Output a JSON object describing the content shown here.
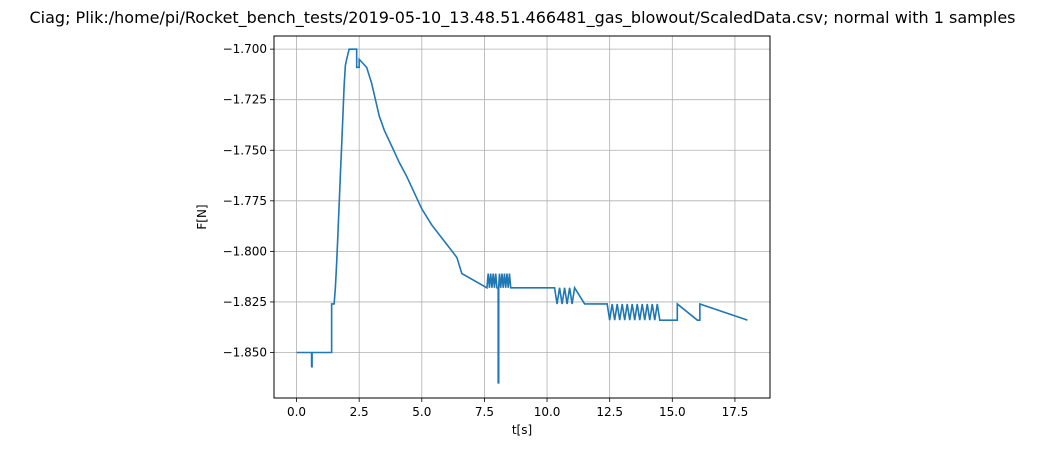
{
  "chart_data": {
    "type": "line",
    "title": "Ciag; Plik:/home/pi/Rocket_bench_tests/2019-05-10_13.48.51.466481_gas_blowout/ScaledData.csv; normal with 1 samples",
    "xlabel": "t[s]",
    "ylabel": "F[N]",
    "xlim": [
      -0.9,
      18.9
    ],
    "ylim": [
      -1.8725,
      -1.6935
    ],
    "xticks": [
      0.0,
      2.5,
      5.0,
      7.5,
      10.0,
      12.5,
      15.0,
      17.5
    ],
    "xtick_labels": [
      "0.0",
      "2.5",
      "5.0",
      "7.5",
      "10.0",
      "12.5",
      "15.0",
      "17.5"
    ],
    "yticks": [
      -1.85,
      -1.825,
      -1.8,
      -1.775,
      -1.75,
      -1.725,
      -1.7
    ],
    "ytick_labels": [
      "−1.850",
      "−1.825",
      "−1.800",
      "−1.775",
      "−1.750",
      "−1.725",
      "−1.700"
    ],
    "grid": true,
    "series": [
      {
        "color": "#1f77b4",
        "x": [
          0.0,
          0.6,
          0.6,
          0.62,
          0.62,
          1.4,
          1.4,
          1.5,
          1.5,
          1.55,
          1.6,
          1.65,
          1.7,
          1.75,
          1.8,
          1.85,
          1.9,
          1.95,
          2.0,
          2.1,
          2.1,
          2.4,
          2.4,
          2.5,
          2.5,
          2.8,
          2.8,
          3.0,
          3.0,
          3.15,
          3.15,
          3.3,
          3.3,
          3.5,
          3.5,
          3.8,
          3.8,
          4.1,
          4.1,
          4.4,
          4.4,
          5.0,
          5.0,
          5.4,
          5.4,
          5.9,
          5.9,
          6.4,
          6.4,
          6.6,
          6.6,
          7.6,
          7.65,
          7.7,
          7.75,
          7.8,
          7.85,
          7.9,
          7.95,
          8.0,
          8.05,
          8.05,
          8.07,
          8.07,
          8.1,
          8.15,
          8.2,
          8.25,
          8.3,
          8.35,
          8.4,
          8.45,
          8.5,
          8.55,
          8.6,
          9.0,
          9.5,
          10.0,
          10.3,
          10.4,
          10.5,
          10.6,
          10.7,
          10.8,
          10.9,
          11.0,
          11.1,
          11.5,
          12.0,
          12.3,
          12.4,
          12.5,
          12.6,
          12.7,
          12.8,
          12.9,
          13.0,
          13.1,
          13.2,
          13.3,
          13.4,
          13.5,
          13.6,
          13.7,
          13.8,
          13.9,
          14.0,
          14.1,
          14.2,
          14.3,
          14.4,
          14.5,
          14.6,
          15.0,
          15.2,
          15.2,
          16.0,
          16.1,
          16.1,
          18.0
        ],
        "y": [
          -1.85,
          -1.85,
          -1.857,
          -1.857,
          -1.85,
          -1.85,
          -1.826,
          -1.826,
          -1.826,
          -1.818,
          -1.806,
          -1.792,
          -1.777,
          -1.762,
          -1.748,
          -1.733,
          -1.718,
          -1.708,
          -1.705,
          -1.7,
          -1.7,
          -1.7,
          -1.709,
          -1.709,
          -1.705,
          -1.709,
          -1.709,
          -1.717,
          -1.717,
          -1.725,
          -1.725,
          -1.733,
          -1.733,
          -1.74,
          -1.74,
          -1.748,
          -1.748,
          -1.756,
          -1.756,
          -1.763,
          -1.763,
          -1.779,
          -1.779,
          -1.787,
          -1.787,
          -1.795,
          -1.795,
          -1.803,
          -1.803,
          -1.811,
          -1.811,
          -1.818,
          -1.811,
          -1.818,
          -1.811,
          -1.818,
          -1.811,
          -1.818,
          -1.811,
          -1.818,
          -1.818,
          -1.865,
          -1.865,
          -1.818,
          -1.811,
          -1.818,
          -1.811,
          -1.818,
          -1.811,
          -1.818,
          -1.811,
          -1.818,
          -1.811,
          -1.818,
          -1.818,
          -1.818,
          -1.818,
          -1.818,
          -1.818,
          -1.826,
          -1.818,
          -1.826,
          -1.818,
          -1.826,
          -1.818,
          -1.826,
          -1.818,
          -1.826,
          -1.826,
          -1.826,
          -1.826,
          -1.834,
          -1.826,
          -1.834,
          -1.826,
          -1.834,
          -1.826,
          -1.834,
          -1.826,
          -1.834,
          -1.826,
          -1.834,
          -1.826,
          -1.834,
          -1.826,
          -1.834,
          -1.826,
          -1.834,
          -1.826,
          -1.834,
          -1.826,
          -1.834,
          -1.834,
          -1.834,
          -1.834,
          -1.826,
          -1.834,
          -1.834,
          -1.826,
          -1.834
        ]
      }
    ]
  }
}
